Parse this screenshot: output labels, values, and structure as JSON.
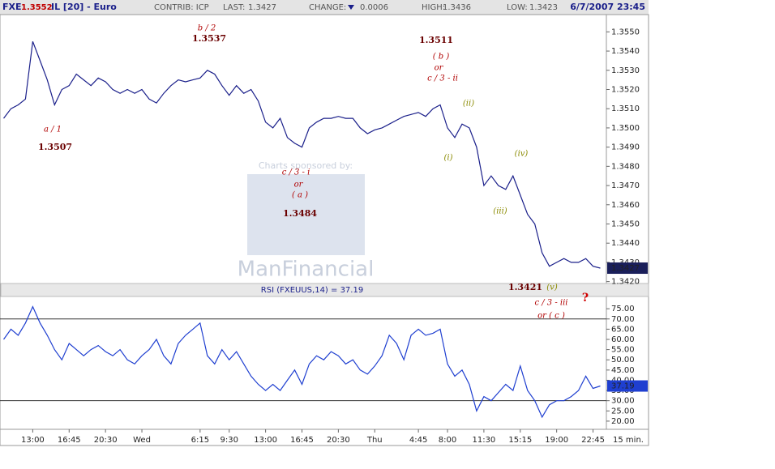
{
  "header": {
    "symbol": "FXE",
    "high_flag": "1.3552",
    "name": "IL [20] - Euro",
    "contrib": "CONTRIB: ICP",
    "last_label": "LAST:",
    "last": "1.3427",
    "change_label": "CHANGE:",
    "change": "0.0006",
    "high_label": "HIGH:",
    "high": "1.3436",
    "low_label": "LOW:",
    "low": "1.3423",
    "datetime": "6/7/2007 23:45"
  },
  "watermark": {
    "line1": "Charts sponsored by:",
    "line2": "ManFinancial"
  },
  "interval": "15 min.",
  "chart_data": [
    {
      "type": "line",
      "categories": [
        null,
        null,
        null,
        null,
        "13:00",
        null,
        null,
        null,
        null,
        "16:45",
        null,
        null,
        null,
        null,
        "20:30",
        null,
        null,
        null,
        null,
        "Wed",
        null,
        null,
        null,
        null,
        null,
        null,
        null,
        "6:15",
        null,
        null,
        null,
        "9:30",
        null,
        null,
        null,
        null,
        "13:00",
        null,
        null,
        null,
        null,
        "16:45",
        null,
        null,
        null,
        null,
        "20:30",
        null,
        null,
        null,
        null,
        "Thu",
        null,
        null,
        null,
        null,
        null,
        "4:45",
        null,
        null,
        null,
        "8:00",
        null,
        null,
        null,
        null,
        "11:30",
        null,
        null,
        null,
        null,
        "15:15",
        null,
        null,
        null,
        null,
        "19:00",
        null,
        null,
        null,
        null,
        "22:45",
        null
      ],
      "series": [
        {
          "color": "#1a1f8a",
          "values": [
            1.3505,
            1.351,
            1.3512,
            1.3515,
            1.3545,
            1.3535,
            1.3525,
            1.3512,
            1.352,
            1.3522,
            1.3528,
            1.3525,
            1.3522,
            1.3526,
            1.3524,
            1.352,
            1.3518,
            1.352,
            1.3518,
            1.352,
            1.3515,
            1.3513,
            1.3518,
            1.3522,
            1.3525,
            1.3524,
            1.3525,
            1.3526,
            1.353,
            1.3528,
            1.3522,
            1.3517,
            1.3522,
            1.3518,
            1.352,
            1.3514,
            1.3503,
            1.35,
            1.3505,
            1.3495,
            1.3492,
            1.349,
            1.35,
            1.3503,
            1.3505,
            1.3505,
            1.3506,
            1.3505,
            1.3505,
            1.35,
            1.3497,
            1.3499,
            1.35,
            1.3502,
            1.3504,
            1.3506,
            1.3507,
            1.3508,
            1.3506,
            1.351,
            1.3512,
            1.35,
            1.3495,
            1.3502,
            1.35,
            1.349,
            1.347,
            1.3475,
            1.347,
            1.3468,
            1.3475,
            1.3465,
            1.3455,
            1.345,
            1.3435,
            1.3428,
            1.343,
            1.3432,
            1.343,
            1.343,
            1.3432,
            1.3428,
            1.3427
          ]
        }
      ],
      "ylim": [
        1.3419,
        1.3559
      ],
      "yticks": [
        {
          "value": 1.342,
          "label": "1.3420"
        },
        {
          "value": 1.343,
          "label": "1.3430"
        },
        {
          "value": 1.344,
          "label": "1.3440"
        },
        {
          "value": 1.345,
          "label": "1.3450"
        },
        {
          "value": 1.346,
          "label": "1.3460"
        },
        {
          "value": 1.347,
          "label": "1.3470"
        },
        {
          "value": 1.348,
          "label": "1.3480"
        },
        {
          "value": 1.349,
          "label": "1.3490"
        },
        {
          "value": 1.35,
          "label": "1.3500"
        },
        {
          "value": 1.351,
          "label": "1.3510"
        },
        {
          "value": 1.352,
          "label": "1.3520"
        },
        {
          "value": 1.353,
          "label": "1.3530"
        },
        {
          "value": 1.354,
          "label": "1.3540"
        },
        {
          "value": 1.355,
          "label": "1.3550"
        }
      ],
      "marker": {
        "value": 1.3427,
        "label": "1.3427"
      },
      "annotations": [
        {
          "text": "a / 1",
          "color": "#b00000"
        },
        {
          "text": "1.3507",
          "color": "#6a0000"
        },
        {
          "text": "b / 2",
          "color": "#b00000"
        },
        {
          "text": "1.3537",
          "color": "#6a0000"
        },
        {
          "text": "1.3511",
          "color": "#6a0000"
        },
        {
          "text": "( b )",
          "color": "#b00000"
        },
        {
          "text": "or",
          "color": "#b00000"
        },
        {
          "text": "c / 3 - ii",
          "color": "#b00000"
        },
        {
          "text": "(ii)",
          "color": "#8a8a00"
        },
        {
          "text": "(i)",
          "color": "#8a8a00"
        },
        {
          "text": "(iv)",
          "color": "#8a8a00"
        },
        {
          "text": "(iii)",
          "color": "#8a8a00"
        },
        {
          "text": "c / 3 - i",
          "color": "#b00000"
        },
        {
          "text": "or",
          "color": "#b00000"
        },
        {
          "text": "( a )",
          "color": "#b00000"
        },
        {
          "text": "1.3484",
          "color": "#6a0000"
        },
        {
          "text": "1.3421",
          "color": "#6a0000"
        },
        {
          "text": "(v)",
          "color": "#8a8a00"
        },
        {
          "text": "c / 3 - iii",
          "color": "#b00000"
        },
        {
          "text": "or     ( c )",
          "color": "#b00000"
        },
        {
          "text": "?",
          "color": "#d00000"
        }
      ]
    },
    {
      "type": "line",
      "title": "RSI (FXEUUS,14) = 37.19",
      "series": [
        {
          "color": "#1f3fd0",
          "values": [
            60,
            65,
            62,
            68,
            76,
            68,
            62,
            55,
            50,
            58,
            55,
            52,
            55,
            57,
            54,
            52,
            55,
            50,
            48,
            52,
            55,
            60,
            52,
            48,
            58,
            62,
            65,
            68,
            52,
            48,
            55,
            50,
            54,
            48,
            42,
            38,
            35,
            38,
            35,
            40,
            45,
            38,
            48,
            52,
            50,
            54,
            52,
            48,
            50,
            45,
            43,
            47,
            52,
            62,
            58,
            50,
            62,
            65,
            62,
            63,
            65,
            48,
            42,
            45,
            38,
            25,
            32,
            30,
            34,
            38,
            35,
            47,
            35,
            30,
            22,
            28,
            30,
            30,
            32,
            35,
            42,
            36,
            37.19
          ]
        }
      ],
      "ylim": [
        16,
        81
      ],
      "yticks": [
        {
          "value": 20,
          "label": "20.00"
        },
        {
          "value": 25,
          "label": "25.00"
        },
        {
          "value": 30,
          "label": "30.00"
        },
        {
          "value": 35,
          "label": "35.00"
        },
        {
          "value": 40,
          "label": "40.00"
        },
        {
          "value": 45,
          "label": "45.00"
        },
        {
          "value": 50,
          "label": "50.00"
        },
        {
          "value": 55,
          "label": "55.00"
        },
        {
          "value": 60,
          "label": "60.00"
        },
        {
          "value": 65,
          "label": "65.00"
        },
        {
          "value": 70,
          "label": "70.00"
        },
        {
          "value": 75,
          "label": "75.00"
        }
      ],
      "reflines": [
        30,
        70
      ],
      "marker": {
        "value": 37.19,
        "label": "37.19"
      }
    }
  ]
}
